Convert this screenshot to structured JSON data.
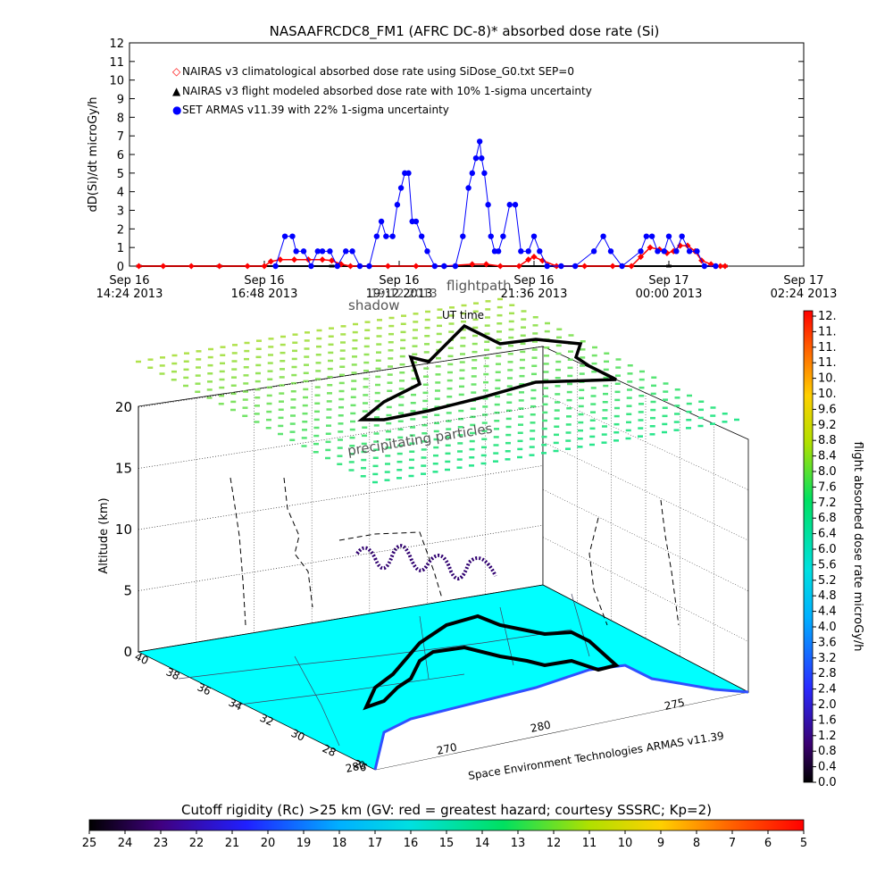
{
  "chart_data": [
    {
      "type": "scatter",
      "title": "NASAAFRCDC8_FM1 (AFRC DC-8)* absorbed dose rate (Si)",
      "ylabel": "dD(Si)/dt microGy/h",
      "ylim": [
        0,
        12
      ],
      "yticks": [
        "0",
        "1",
        "2",
        "3",
        "4",
        "5",
        "6",
        "7",
        "8",
        "9",
        "10",
        "11",
        "12"
      ],
      "xlim": [
        "2013-09-16 14:24",
        "2013-09-17 02:24"
      ],
      "xticks": [
        {
          "line1": "Sep 16",
          "line2": "14:24 2013"
        },
        {
          "line1": "Sep 16",
          "line2": "16:48 2013"
        },
        {
          "line1": "Sep 16",
          "line2": "19:12 2013"
        },
        {
          "line1": "Sep 16",
          "line2": "21:36 2013"
        },
        {
          "line1": "Sep 17",
          "line2": "00:00 2013"
        },
        {
          "line1": "Sep 17",
          "line2": "02:24 2013"
        }
      ],
      "legend": {
        "position": "top-left",
        "entries": [
          {
            "symbol": "◇",
            "color": "#ff0000",
            "label": "NAIRAS v3 climatological absorbed dose rate using SiDose_G0.txt SEP=0"
          },
          {
            "symbol": "▲",
            "color": "#000000",
            "label": "NAIRAS v3 flight modeled absorbed dose rate with 10% 1-sigma uncertainty"
          },
          {
            "symbol": "●",
            "color": "#0000ff",
            "label": "SET ARMAS v11.39 with 22% 1-sigma uncertainty"
          }
        ]
      },
      "series": [
        {
          "name": "NAIRAS v3 climatological absorbed dose rate using SiDose_G0.txt SEP=0",
          "color": "#ff0000",
          "points": [
            [
              "2013-09-16 14:34",
              0.0
            ],
            [
              "2013-09-16 15:00",
              0.0
            ],
            [
              "2013-09-16 15:30",
              0.0
            ],
            [
              "2013-09-16 16:00",
              0.0
            ],
            [
              "2013-09-16 16:30",
              0.0
            ],
            [
              "2013-09-16 16:48",
              0.0
            ],
            [
              "2013-09-16 16:55",
              0.25
            ],
            [
              "2013-09-16 17:05",
              0.35
            ],
            [
              "2013-09-16 17:20",
              0.35
            ],
            [
              "2013-09-16 17:35",
              0.35
            ],
            [
              "2013-09-16 17:50",
              0.35
            ],
            [
              "2013-09-16 18:00",
              0.3
            ],
            [
              "2013-09-16 18:10",
              0.1
            ],
            [
              "2013-09-16 18:20",
              0.0
            ],
            [
              "2013-09-16 18:40",
              0.0
            ],
            [
              "2013-09-16 19:00",
              0.0
            ],
            [
              "2013-09-16 19:30",
              0.0
            ],
            [
              "2013-09-16 20:00",
              0.0
            ],
            [
              "2013-09-16 20:30",
              0.1
            ],
            [
              "2013-09-16 20:45",
              0.1
            ],
            [
              "2013-09-16 21:00",
              0.0
            ],
            [
              "2013-09-16 21:20",
              0.0
            ],
            [
              "2013-09-16 21:30",
              0.35
            ],
            [
              "2013-09-16 21:36",
              0.5
            ],
            [
              "2013-09-16 21:45",
              0.3
            ],
            [
              "2013-09-16 22:00",
              0.0
            ],
            [
              "2013-09-16 22:30",
              0.0
            ],
            [
              "2013-09-16 23:00",
              0.0
            ],
            [
              "2013-09-16 23:20",
              0.0
            ],
            [
              "2013-09-16 23:30",
              0.5
            ],
            [
              "2013-09-16 23:40",
              1.0
            ],
            [
              "2013-09-16 23:50",
              0.9
            ],
            [
              "2013-09-16 23:58",
              0.7
            ],
            [
              "2013-09-17 00:05",
              0.8
            ],
            [
              "2013-09-17 00:12",
              1.1
            ],
            [
              "2013-09-17 00:20",
              1.1
            ],
            [
              "2013-09-17 00:28",
              0.8
            ],
            [
              "2013-09-17 00:35",
              0.3
            ],
            [
              "2013-09-17 00:45",
              0.1
            ],
            [
              "2013-09-17 00:55",
              0.0
            ],
            [
              "2013-09-17 01:00",
              0.0
            ]
          ]
        },
        {
          "name": "NAIRAS v3 flight modeled absorbed dose rate with 10% 1-sigma uncertainty",
          "color": "#000000",
          "points": [
            [
              "2013-09-16 14:34",
              0.0
            ],
            [
              "2013-09-16 16:00",
              0.0
            ],
            [
              "2013-09-16 18:00",
              0.0
            ],
            [
              "2013-09-16 20:00",
              0.0
            ],
            [
              "2013-09-16 22:00",
              0.0
            ],
            [
              "2013-09-17 00:00",
              0.0
            ],
            [
              "2013-09-17 01:00",
              0.0
            ]
          ]
        },
        {
          "name": "SET ARMAS v11.39 with 22% 1-sigma uncertainty",
          "color": "#0000ff",
          "points": [
            [
              "2013-09-16 17:00",
              0.0
            ],
            [
              "2013-09-16 17:10",
              1.6
            ],
            [
              "2013-09-16 17:18",
              1.6
            ],
            [
              "2013-09-16 17:22",
              0.8
            ],
            [
              "2013-09-16 17:30",
              0.8
            ],
            [
              "2013-09-16 17:38",
              0.0
            ],
            [
              "2013-09-16 17:45",
              0.8
            ],
            [
              "2013-09-16 17:50",
              0.8
            ],
            [
              "2013-09-16 17:58",
              0.8
            ],
            [
              "2013-09-16 18:06",
              0.0
            ],
            [
              "2013-09-16 18:15",
              0.8
            ],
            [
              "2013-09-16 18:22",
              0.8
            ],
            [
              "2013-09-16 18:30",
              0.0
            ],
            [
              "2013-09-16 18:40",
              0.0
            ],
            [
              "2013-09-16 18:48",
              1.6
            ],
            [
              "2013-09-16 18:53",
              2.4
            ],
            [
              "2013-09-16 18:58",
              1.6
            ],
            [
              "2013-09-16 19:05",
              1.6
            ],
            [
              "2013-09-16 19:10",
              3.3
            ],
            [
              "2013-09-16 19:14",
              4.2
            ],
            [
              "2013-09-16 19:18",
              5.0
            ],
            [
              "2013-09-16 19:22",
              5.0
            ],
            [
              "2013-09-16 19:26",
              2.4
            ],
            [
              "2013-09-16 19:30",
              2.4
            ],
            [
              "2013-09-16 19:36",
              1.6
            ],
            [
              "2013-09-16 19:42",
              0.8
            ],
            [
              "2013-09-16 19:50",
              0.0
            ],
            [
              "2013-09-16 20:00",
              0.0
            ],
            [
              "2013-09-16 20:12",
              0.0
            ],
            [
              "2013-09-16 20:20",
              1.6
            ],
            [
              "2013-09-16 20:26",
              4.2
            ],
            [
              "2013-09-16 20:30",
              5.0
            ],
            [
              "2013-09-16 20:34",
              5.8
            ],
            [
              "2013-09-16 20:38",
              6.7
            ],
            [
              "2013-09-16 20:40",
              5.8
            ],
            [
              "2013-09-16 20:43",
              5.0
            ],
            [
              "2013-09-16 20:47",
              3.3
            ],
            [
              "2013-09-16 20:50",
              1.6
            ],
            [
              "2013-09-16 20:54",
              0.8
            ],
            [
              "2013-09-16 20:58",
              0.8
            ],
            [
              "2013-09-16 21:03",
              1.6
            ],
            [
              "2013-09-16 21:10",
              3.3
            ],
            [
              "2013-09-16 21:16",
              3.3
            ],
            [
              "2013-09-16 21:22",
              0.8
            ],
            [
              "2013-09-16 21:30",
              0.8
            ],
            [
              "2013-09-16 21:36",
              1.6
            ],
            [
              "2013-09-16 21:42",
              0.8
            ],
            [
              "2013-09-16 21:50",
              0.0
            ],
            [
              "2013-09-16 22:05",
              0.0
            ],
            [
              "2013-09-16 22:20",
              0.0
            ],
            [
              "2013-09-16 22:40",
              0.8
            ],
            [
              "2013-09-16 22:50",
              1.6
            ],
            [
              "2013-09-16 22:58",
              0.8
            ],
            [
              "2013-09-16 23:10",
              0.0
            ],
            [
              "2013-09-16 23:30",
              0.8
            ],
            [
              "2013-09-16 23:36",
              1.6
            ],
            [
              "2013-09-16 23:42",
              1.6
            ],
            [
              "2013-09-16 23:48",
              0.8
            ],
            [
              "2013-09-16 23:55",
              0.8
            ],
            [
              "2013-09-17 00:00",
              1.6
            ],
            [
              "2013-09-17 00:08",
              0.8
            ],
            [
              "2013-09-17 00:14",
              1.6
            ],
            [
              "2013-09-17 00:22",
              0.8
            ],
            [
              "2013-09-17 00:30",
              0.8
            ],
            [
              "2013-09-17 00:38",
              0.0
            ],
            [
              "2013-09-17 00:50",
              0.0
            ]
          ]
        }
      ]
    },
    {
      "type": "3d-map",
      "zlabel": "Altitude (km)",
      "zticks": [
        "0",
        "5",
        "10",
        "15",
        "20"
      ],
      "lat_ticks": [
        "40",
        "38",
        "36",
        "34",
        "32",
        "30",
        "28",
        "26"
      ],
      "lon_ticks": [
        "280",
        "270",
        "280",
        "275"
      ],
      "annotations": [
        "shadow",
        "flightpath",
        "UT time",
        "precipitating particles",
        "19:12 2013"
      ],
      "credit": "Space Environment Technologies ARMAS v11.39"
    },
    {
      "type": "colorbar",
      "orientation": "vertical",
      "label": "flight absorbed dose rate microGy/h",
      "ticks": [
        "0.0",
        "0.4",
        "0.8",
        "1.2",
        "1.6",
        "2.0",
        "2.4",
        "2.8",
        "3.2",
        "3.6",
        "4.0",
        "4.4",
        "4.8",
        "5.2",
        "5.6",
        "6.0",
        "6.4",
        "6.8",
        "7.2",
        "7.6",
        "8.0",
        "8.4",
        "8.8",
        "9.2",
        "9.6",
        "10.",
        "10.",
        "11.",
        "11.",
        "11.",
        "12."
      ]
    },
    {
      "type": "colorbar",
      "orientation": "horizontal",
      "title": "Cutoff rigidity (Rc) >25 km (GV: red = greatest hazard; courtesy SSSRC; Kp=2)",
      "ticks": [
        "25",
        "24",
        "23",
        "22",
        "21",
        "20",
        "19",
        "18",
        "17",
        "16",
        "15",
        "14",
        "13",
        "12",
        "11",
        "10",
        "9",
        "8",
        "7",
        "6",
        "5"
      ]
    }
  ]
}
